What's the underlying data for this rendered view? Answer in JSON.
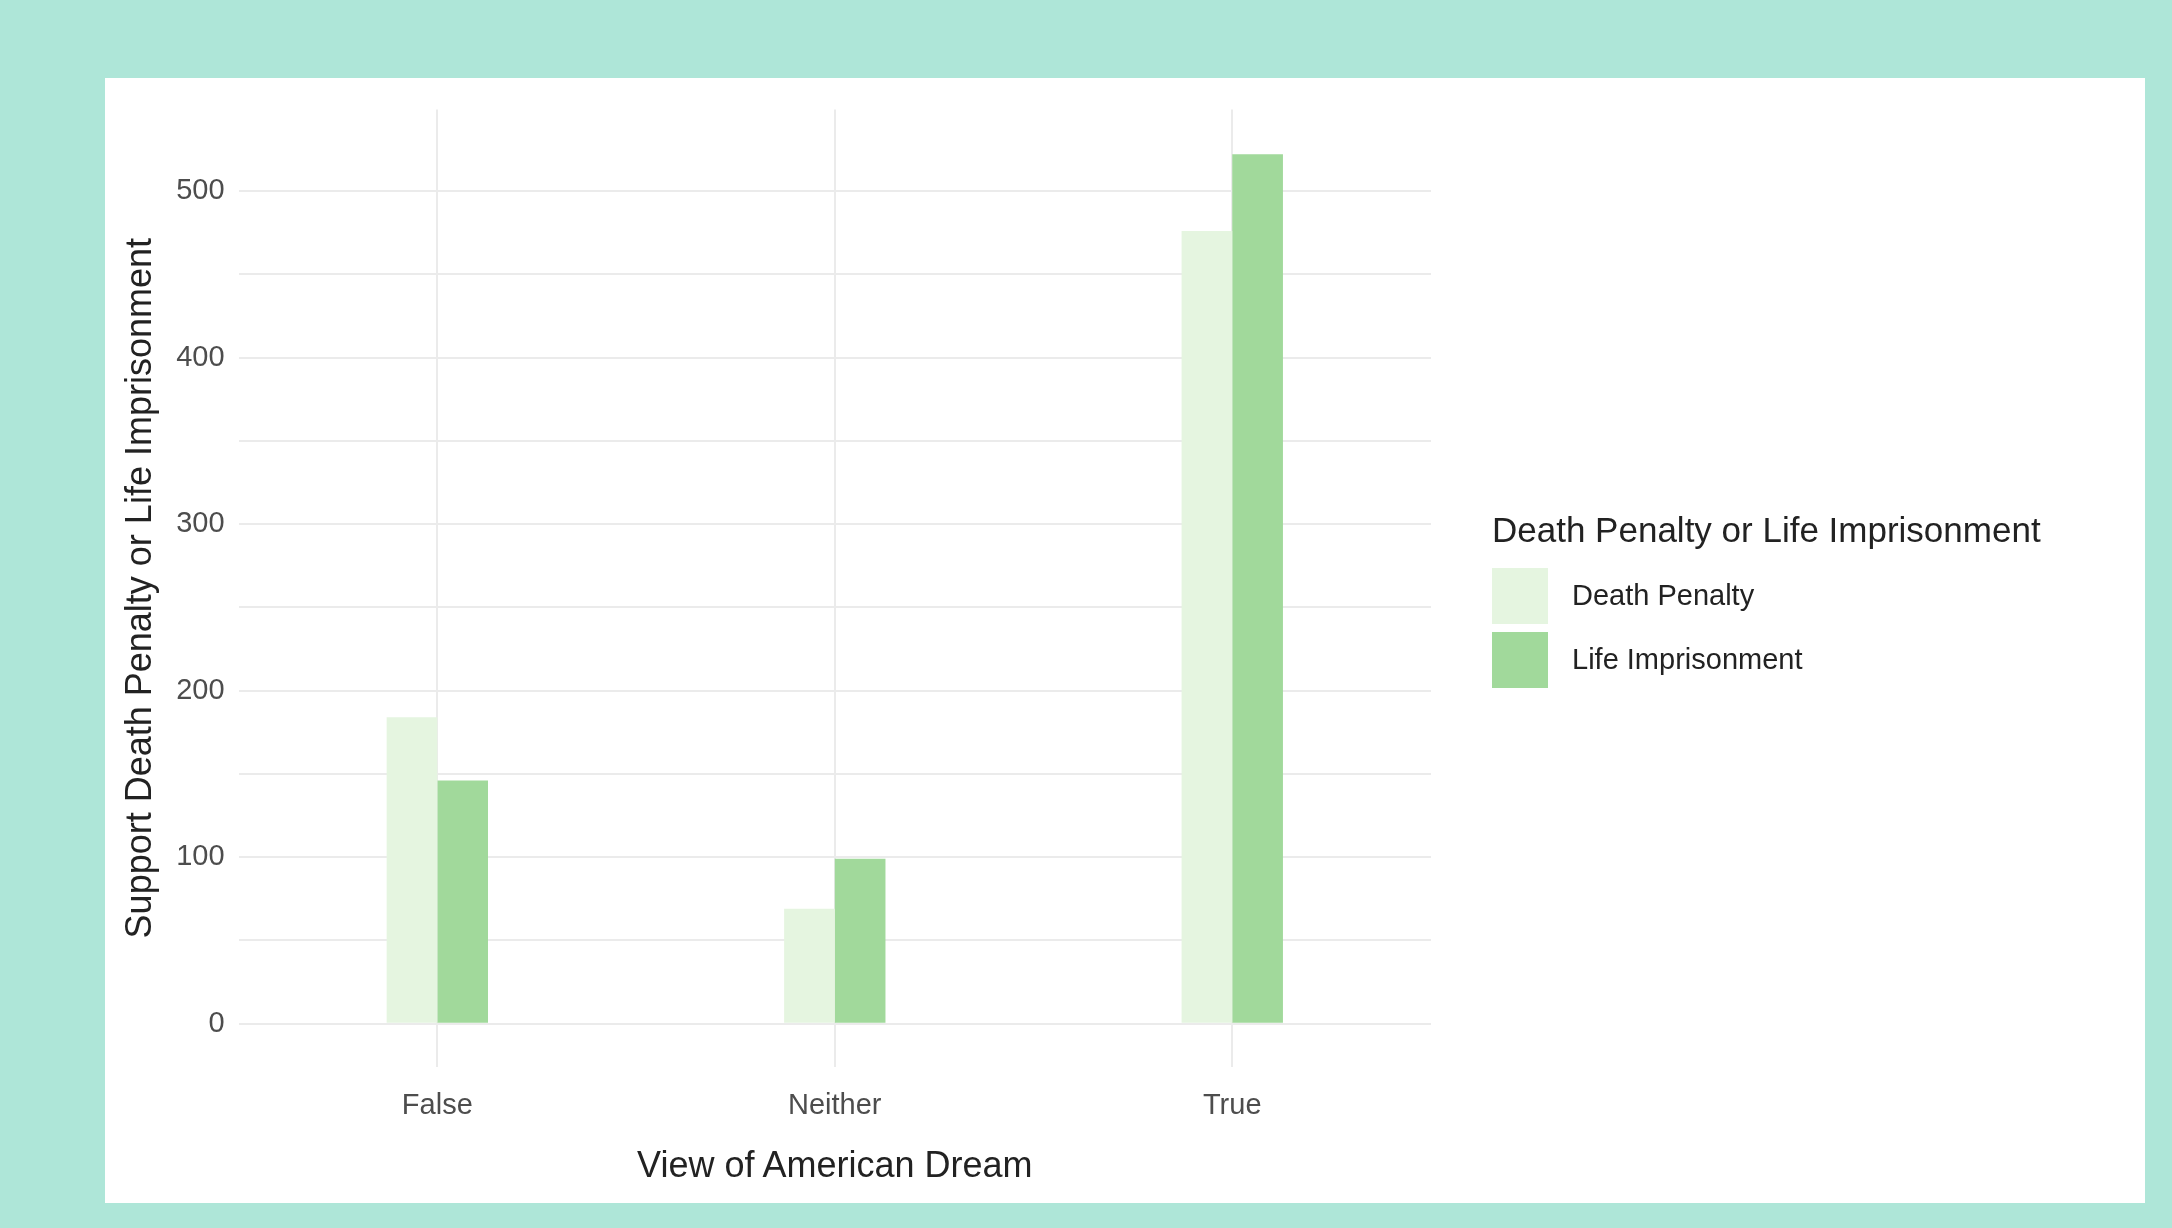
{
  "chart_data": {
    "type": "bar",
    "xlabel": "View of American Dream",
    "ylabel": "Support Death Penalty or Life Imprisonment",
    "legend_title": "Death Penalty or Life Imprisonment",
    "categories": [
      "False",
      "Neither",
      "True"
    ],
    "series": [
      {
        "name": "Death Penalty",
        "color": "#e5f5e0",
        "values": [
          184,
          69,
          476
        ]
      },
      {
        "name": "Life Imprisonment",
        "color": "#a1d99b",
        "values": [
          146,
          99,
          522
        ]
      }
    ],
    "ylim": [
      -26,
      549
    ],
    "yticks": [
      0,
      {
        "value": 50,
        "label": null
      },
      100,
      {
        "value": 150,
        "label": null
      },
      200,
      {
        "value": 250,
        "label": null
      },
      300,
      {
        "value": 350,
        "label": null
      },
      400,
      {
        "value": 450,
        "label": null
      },
      500
    ],
    "grid": true,
    "legend": "right"
  }
}
